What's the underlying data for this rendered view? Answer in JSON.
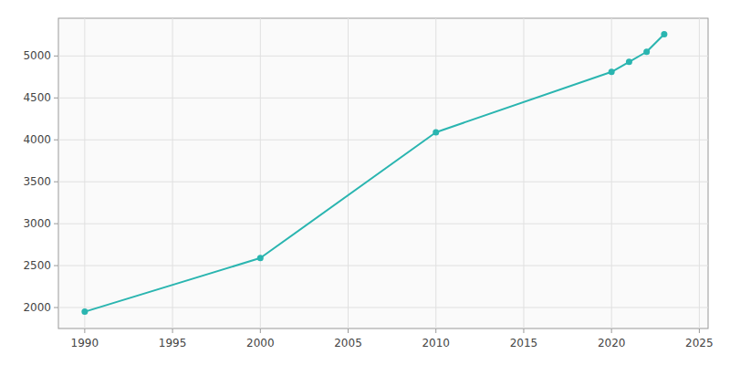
{
  "chart_data": {
    "type": "line",
    "x": [
      1990,
      2000,
      2010,
      2020,
      2021,
      2022,
      2023
    ],
    "values": [
      1950,
      2590,
      4090,
      4810,
      4930,
      5050,
      5260
    ],
    "color": "#2ab5b0",
    "marker": "circle",
    "xlim": [
      1988.5,
      2025.5
    ],
    "ylim": [
      1750,
      5450
    ],
    "xticks": [
      1990,
      1995,
      2000,
      2005,
      2010,
      2015,
      2020,
      2025
    ],
    "yticks": [
      2000,
      2500,
      3000,
      3500,
      4000,
      4500,
      5000
    ],
    "grid": true
  }
}
